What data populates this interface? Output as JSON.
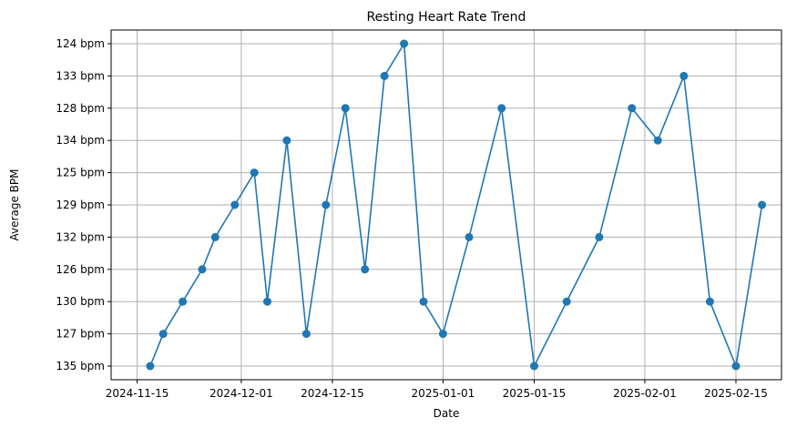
{
  "chart_data": {
    "type": "line",
    "title": "Resting Heart Rate Trend",
    "xlabel": "Date",
    "ylabel": "Average BPM",
    "grid": true,
    "color": "#1f77b4",
    "marker": "circle",
    "x_ticks": [
      "2024-11-15",
      "2024-12-01",
      "2024-12-15",
      "2025-01-01",
      "2025-01-15",
      "2025-02-01",
      "2025-02-15"
    ],
    "y_categories": [
      "135 bpm",
      "127 bpm",
      "130 bpm",
      "126 bpm",
      "132 bpm",
      "129 bpm",
      "125 bpm",
      "134 bpm",
      "128 bpm",
      "133 bpm",
      "124 bpm"
    ],
    "x_range": [
      "2024-11-11",
      "2025-02-22"
    ],
    "points": [
      {
        "x": "2024-11-17",
        "y": "135 bpm"
      },
      {
        "x": "2024-11-19",
        "y": "127 bpm"
      },
      {
        "x": "2024-11-22",
        "y": "130 bpm"
      },
      {
        "x": "2024-11-25",
        "y": "126 bpm"
      },
      {
        "x": "2024-11-27",
        "y": "132 bpm"
      },
      {
        "x": "2024-11-30",
        "y": "129 bpm"
      },
      {
        "x": "2024-12-03",
        "y": "125 bpm"
      },
      {
        "x": "2024-12-05",
        "y": "130 bpm"
      },
      {
        "x": "2024-12-08",
        "y": "134 bpm"
      },
      {
        "x": "2024-12-11",
        "y": "127 bpm"
      },
      {
        "x": "2024-12-14",
        "y": "129 bpm"
      },
      {
        "x": "2024-12-17",
        "y": "128 bpm"
      },
      {
        "x": "2024-12-20",
        "y": "126 bpm"
      },
      {
        "x": "2024-12-23",
        "y": "133 bpm"
      },
      {
        "x": "2024-12-26",
        "y": "124 bpm"
      },
      {
        "x": "2024-12-29",
        "y": "130 bpm"
      },
      {
        "x": "2025-01-01",
        "y": "127 bpm"
      },
      {
        "x": "2025-01-05",
        "y": "132 bpm"
      },
      {
        "x": "2025-01-10",
        "y": "128 bpm"
      },
      {
        "x": "2025-01-15",
        "y": "135 bpm"
      },
      {
        "x": "2025-01-20",
        "y": "130 bpm"
      },
      {
        "x": "2025-01-25",
        "y": "132 bpm"
      },
      {
        "x": "2025-01-30",
        "y": "128 bpm"
      },
      {
        "x": "2025-02-03",
        "y": "134 bpm"
      },
      {
        "x": "2025-02-07",
        "y": "133 bpm"
      },
      {
        "x": "2025-02-11",
        "y": "130 bpm"
      },
      {
        "x": "2025-02-15",
        "y": "135 bpm"
      },
      {
        "x": "2025-02-19",
        "y": "129 bpm"
      }
    ]
  }
}
